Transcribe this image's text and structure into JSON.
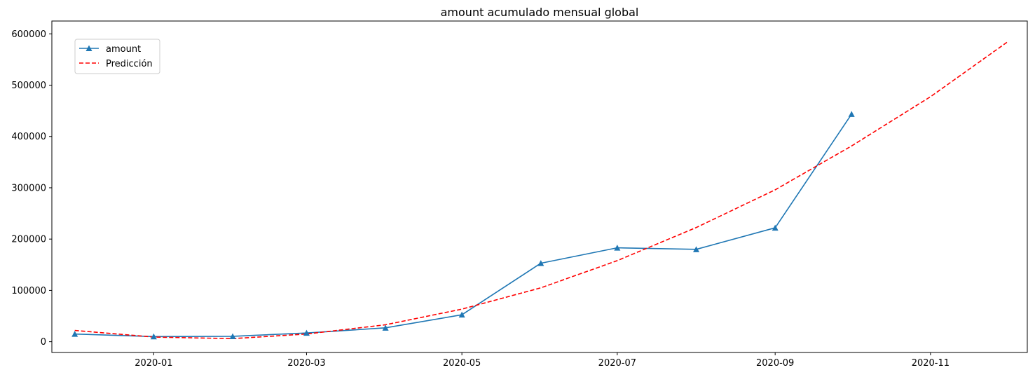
{
  "chart_data": {
    "type": "line",
    "title": "amount acumulado mensual global",
    "xlabel": "",
    "ylabel": "",
    "x_axis": {
      "type": "date",
      "range": [
        "2019-11-22",
        "2020-12-09"
      ],
      "ticks": [
        {
          "date": "2020-01-01",
          "label": "2020-01"
        },
        {
          "date": "2020-03-01",
          "label": "2020-03"
        },
        {
          "date": "2020-05-01",
          "label": "2020-05"
        },
        {
          "date": "2020-07-01",
          "label": "2020-07"
        },
        {
          "date": "2020-09-01",
          "label": "2020-09"
        },
        {
          "date": "2020-11-01",
          "label": "2020-11"
        }
      ]
    },
    "y_axis": {
      "range": [
        -21000,
        625000
      ],
      "ticks": [
        0,
        100000,
        200000,
        300000,
        400000,
        500000,
        600000
      ],
      "tick_labels": [
        "0",
        "100000",
        "200000",
        "300000",
        "400000",
        "500000",
        "600000"
      ]
    },
    "grid": false,
    "legend": {
      "position": "top-left",
      "entries": [
        "amount",
        "Predicción"
      ]
    },
    "series": [
      {
        "name": "amount",
        "color": "#1f77b4",
        "line_style": "solid",
        "marker": "triangle-up",
        "x": [
          "2019-12-01",
          "2020-01-01",
          "2020-02-01",
          "2020-03-01",
          "2020-04-01",
          "2020-05-01",
          "2020-06-01",
          "2020-07-01",
          "2020-08-01",
          "2020-09-01",
          "2020-10-01"
        ],
        "values": [
          15000,
          10000,
          10500,
          17000,
          27000,
          52500,
          153000,
          183000,
          180000,
          222000,
          443500
        ]
      },
      {
        "name": "Predicción",
        "color": "#ff0000",
        "line_style": "dashed",
        "marker": "none",
        "x": [
          "2019-12-01",
          "2020-01-01",
          "2020-02-01",
          "2020-03-01",
          "2020-04-01",
          "2020-05-01",
          "2020-06-01",
          "2020-07-01",
          "2020-08-01",
          "2020-09-01",
          "2020-10-01",
          "2020-11-01",
          "2020-12-01"
        ],
        "values": [
          22000,
          9000,
          6000,
          15000,
          33000,
          63500,
          105000,
          158000,
          222500,
          296000,
          381500,
          477500,
          583500
        ]
      }
    ]
  }
}
